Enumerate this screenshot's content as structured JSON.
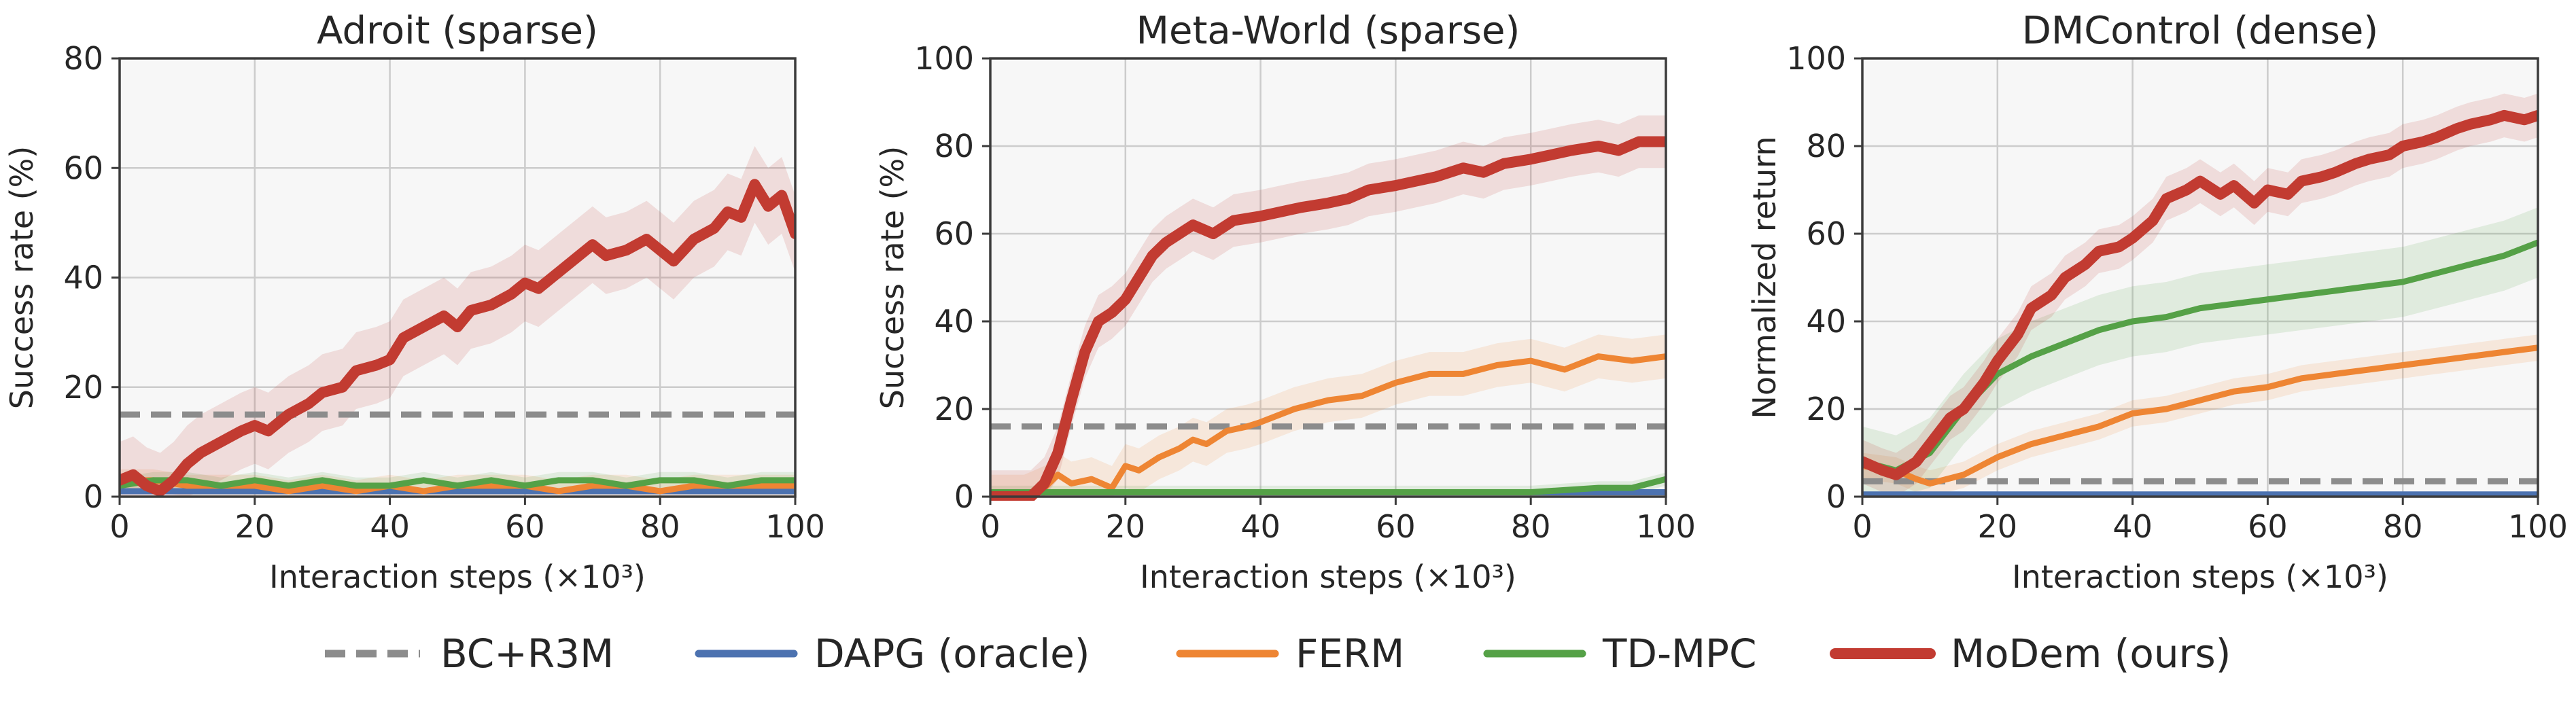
{
  "figure": {
    "legend_placement": "bottom-center",
    "legend": [
      {
        "label": "BC+R3M",
        "color": "#8c8c8c",
        "dash": true,
        "width": "thin"
      },
      {
        "label": "DAPG (oracle)",
        "color": "#4c72b0",
        "dash": false,
        "width": "thin"
      },
      {
        "label": "FERM",
        "color": "#ee8533",
        "dash": false,
        "width": "thin"
      },
      {
        "label": "TD-MPC",
        "color": "#55a147",
        "dash": false,
        "width": "thin"
      },
      {
        "label": "MoDem (ours)",
        "color": "#c23b31",
        "dash": false,
        "width": "thick"
      }
    ]
  },
  "chart_data": [
    {
      "type": "line",
      "title": "Adroit (sparse)",
      "xlabel": "Interaction steps (×10³)",
      "ylabel": "Success rate (%)",
      "xlim": [
        0,
        100
      ],
      "ylim": [
        0,
        80
      ],
      "xticks": [
        0,
        20,
        40,
        60,
        80,
        100
      ],
      "yticks": [
        0,
        20,
        40,
        60,
        80
      ],
      "grid": true,
      "baselines": [
        {
          "name": "BC+R3M",
          "y": 15
        }
      ],
      "series": [
        {
          "name": "DAPG (oracle)",
          "x": [
            0,
            100
          ],
          "y": [
            1,
            1
          ],
          "band": null
        },
        {
          "name": "FERM",
          "x": [
            0,
            5,
            10,
            15,
            20,
            25,
            30,
            35,
            40,
            45,
            50,
            55,
            60,
            65,
            70,
            75,
            80,
            85,
            90,
            95,
            100
          ],
          "y": [
            3,
            3,
            2,
            2,
            2,
            1,
            2,
            1,
            2,
            1,
            2,
            2,
            2,
            1,
            2,
            2,
            1,
            2,
            2,
            2,
            2
          ],
          "band": 2
        },
        {
          "name": "TD-MPC",
          "x": [
            0,
            5,
            10,
            15,
            20,
            25,
            30,
            35,
            40,
            45,
            50,
            55,
            60,
            65,
            70,
            75,
            80,
            85,
            90,
            95,
            100
          ],
          "y": [
            2,
            3,
            3,
            2,
            3,
            2,
            3,
            2,
            2,
            3,
            2,
            3,
            2,
            3,
            3,
            2,
            3,
            3,
            2,
            3,
            3
          ],
          "band": 1.5
        },
        {
          "name": "MoDem (ours)",
          "x": [
            0,
            2,
            4,
            6,
            8,
            10,
            12,
            15,
            18,
            20,
            22,
            25,
            28,
            30,
            33,
            35,
            38,
            40,
            42,
            45,
            48,
            50,
            52,
            55,
            58,
            60,
            62,
            65,
            68,
            70,
            72,
            75,
            78,
            80,
            82,
            85,
            88,
            90,
            92,
            94,
            96,
            98,
            100
          ],
          "y": [
            3,
            4,
            2,
            1,
            3,
            6,
            8,
            10,
            12,
            13,
            12,
            15,
            17,
            19,
            20,
            23,
            24,
            25,
            29,
            31,
            33,
            31,
            34,
            35,
            37,
            39,
            38,
            41,
            44,
            46,
            44,
            45,
            47,
            45,
            43,
            47,
            49,
            52,
            51,
            57,
            53,
            55,
            48
          ],
          "band": 7
        }
      ]
    },
    {
      "type": "line",
      "title": "Meta-World (sparse)",
      "xlabel": "Interaction steps (×10³)",
      "ylabel": "Success rate (%)",
      "xlim": [
        0,
        100
      ],
      "ylim": [
        0,
        100
      ],
      "xticks": [
        0,
        20,
        40,
        60,
        80,
        100
      ],
      "yticks": [
        0,
        20,
        40,
        60,
        80,
        100
      ],
      "grid": true,
      "baselines": [
        {
          "name": "BC+R3M",
          "y": 16
        }
      ],
      "series": [
        {
          "name": "DAPG (oracle)",
          "x": [
            0,
            100
          ],
          "y": [
            1,
            1
          ],
          "band": null
        },
        {
          "name": "FERM",
          "x": [
            0,
            5,
            8,
            10,
            12,
            15,
            18,
            20,
            22,
            25,
            28,
            30,
            32,
            35,
            38,
            40,
            45,
            50,
            55,
            60,
            65,
            70,
            75,
            80,
            85,
            90,
            95,
            100
          ],
          "y": [
            0,
            0,
            2,
            5,
            3,
            4,
            2,
            7,
            6,
            9,
            11,
            13,
            12,
            15,
            16,
            17,
            20,
            22,
            23,
            26,
            28,
            28,
            30,
            31,
            29,
            32,
            31,
            32
          ],
          "band": 5
        },
        {
          "name": "TD-MPC",
          "x": [
            0,
            10,
            20,
            30,
            40,
            50,
            60,
            70,
            80,
            90,
            95,
            100
          ],
          "y": [
            1,
            1,
            1,
            1,
            1,
            1,
            1,
            1,
            1,
            2,
            2,
            4
          ],
          "band": 1.5
        },
        {
          "name": "MoDem (ours)",
          "x": [
            0,
            3,
            6,
            8,
            10,
            12,
            14,
            16,
            18,
            20,
            22,
            24,
            26,
            28,
            30,
            33,
            36,
            40,
            43,
            46,
            50,
            53,
            56,
            60,
            63,
            66,
            70,
            73,
            76,
            80,
            83,
            86,
            90,
            93,
            96,
            100
          ],
          "y": [
            0,
            0,
            0,
            3,
            10,
            22,
            33,
            40,
            42,
            45,
            50,
            55,
            58,
            60,
            62,
            60,
            63,
            64,
            65,
            66,
            67,
            68,
            70,
            71,
            72,
            73,
            75,
            74,
            76,
            77,
            78,
            79,
            80,
            79,
            81,
            81
          ],
          "band": 6
        }
      ]
    },
    {
      "type": "line",
      "title": "DMControl (dense)",
      "xlabel": "Interaction steps (×10³)",
      "ylabel": "Normalized return",
      "xlim": [
        0,
        100
      ],
      "ylim": [
        0,
        100
      ],
      "xticks": [
        0,
        20,
        40,
        60,
        80,
        100
      ],
      "yticks": [
        0,
        20,
        40,
        60,
        80,
        100
      ],
      "grid": true,
      "baselines": [
        {
          "name": "BC+R3M",
          "y": 3.5
        }
      ],
      "series": [
        {
          "name": "DAPG (oracle)",
          "x": [
            0,
            100
          ],
          "y": [
            0.5,
            0.5
          ],
          "band": null
        },
        {
          "name": "FERM",
          "x": [
            0,
            5,
            8,
            10,
            15,
            20,
            25,
            30,
            35,
            40,
            45,
            50,
            55,
            60,
            65,
            70,
            75,
            80,
            85,
            90,
            95,
            100
          ],
          "y": [
            7,
            6,
            4,
            3,
            5,
            9,
            12,
            14,
            16,
            19,
            20,
            22,
            24,
            25,
            27,
            28,
            29,
            30,
            31,
            32,
            33,
            34
          ],
          "band": 3
        },
        {
          "name": "TD-MPC",
          "x": [
            0,
            5,
            10,
            15,
            20,
            25,
            30,
            35,
            40,
            45,
            50,
            55,
            60,
            65,
            70,
            75,
            80,
            85,
            90,
            95,
            100
          ],
          "y": [
            8,
            6,
            10,
            20,
            28,
            32,
            35,
            38,
            40,
            41,
            43,
            44,
            45,
            46,
            47,
            48,
            49,
            51,
            53,
            55,
            58
          ],
          "band": 8
        },
        {
          "name": "MoDem (ours)",
          "x": [
            0,
            3,
            5,
            8,
            10,
            13,
            15,
            18,
            20,
            23,
            25,
            28,
            30,
            33,
            35,
            38,
            40,
            43,
            45,
            48,
            50,
            53,
            55,
            58,
            60,
            63,
            65,
            68,
            70,
            73,
            75,
            78,
            80,
            83,
            85,
            88,
            90,
            93,
            95,
            98,
            100
          ],
          "y": [
            8,
            6,
            5,
            8,
            12,
            18,
            20,
            26,
            31,
            37,
            43,
            46,
            50,
            53,
            56,
            57,
            59,
            63,
            68,
            70,
            72,
            69,
            71,
            67,
            70,
            69,
            72,
            73,
            74,
            76,
            77,
            78,
            80,
            81,
            82,
            84,
            85,
            86,
            87,
            86,
            87
          ],
          "band": 5
        }
      ]
    }
  ]
}
